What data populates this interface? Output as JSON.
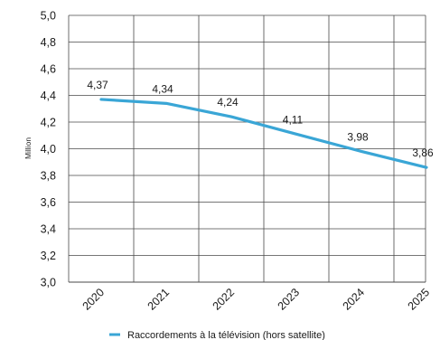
{
  "chart_data": {
    "type": "line",
    "x": [
      "2020",
      "2021",
      "2022",
      "2023",
      "2024",
      "2025"
    ],
    "series": [
      {
        "name": "Raccordements à la télévision (hors satellite)",
        "values": [
          4.37,
          4.34,
          4.24,
          4.11,
          3.98,
          3.86
        ],
        "labels": [
          "4,37",
          "4,34",
          "4,24",
          "4,11",
          "3,98",
          "3,86"
        ],
        "color": "#3aa6d6"
      }
    ],
    "ylabel": "Million",
    "ylim": [
      3.0,
      5.0
    ],
    "yticks": [
      "3,0",
      "3,2",
      "3,4",
      "3,6",
      "3,8",
      "4,0",
      "4,2",
      "4,4",
      "4,6",
      "4,8",
      "5,0"
    ],
    "grid": true,
    "legend": "bottom"
  }
}
